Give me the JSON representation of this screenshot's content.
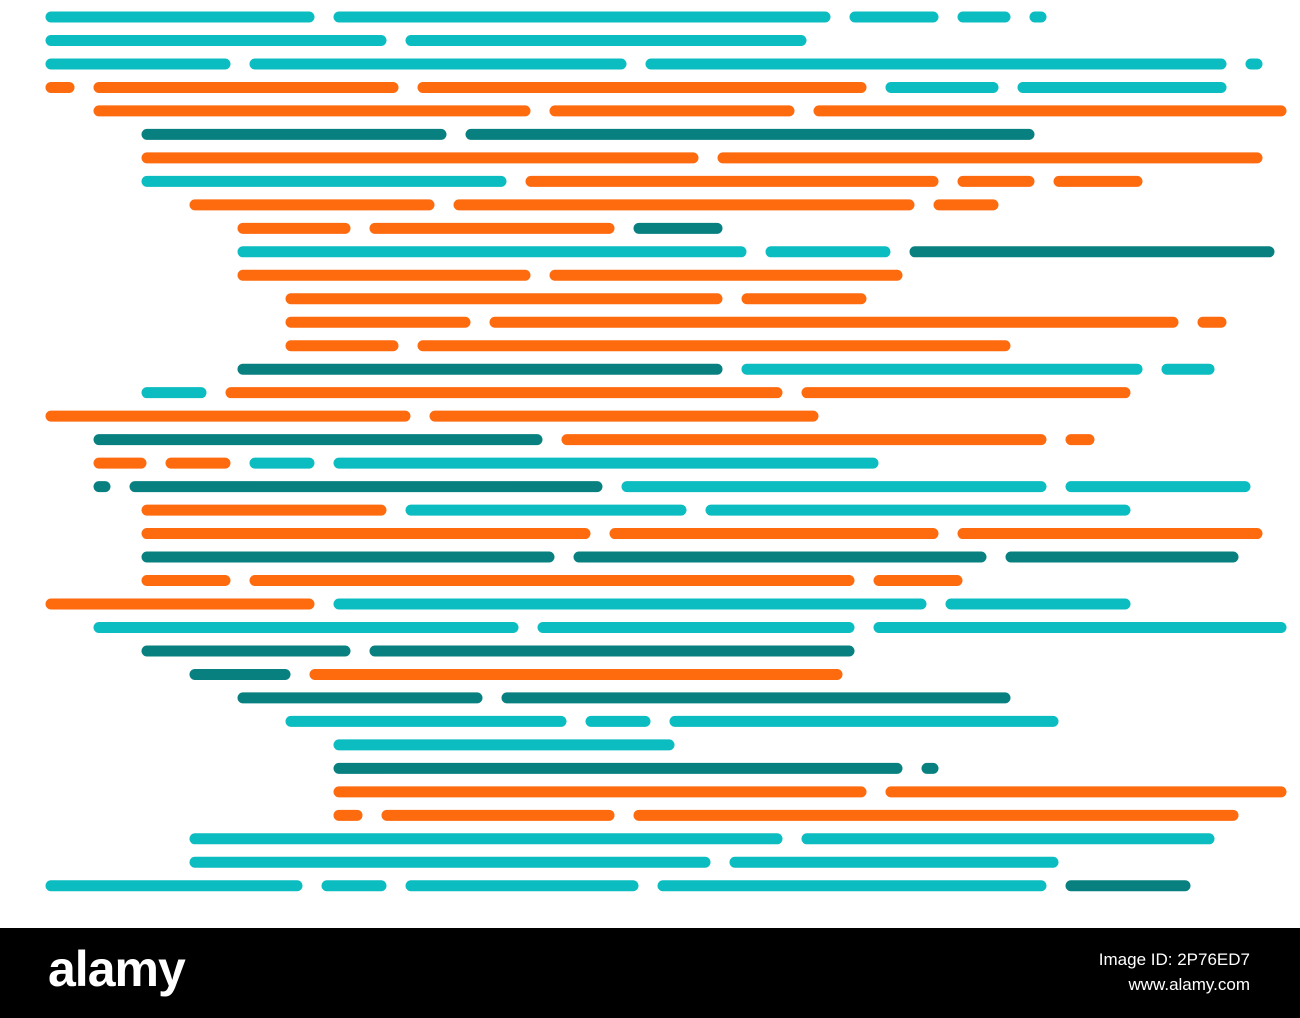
{
  "footer": {
    "logo": "alamy",
    "image_id": "Image ID: 2P76ED7",
    "url": "www.alamy.com"
  }
}
